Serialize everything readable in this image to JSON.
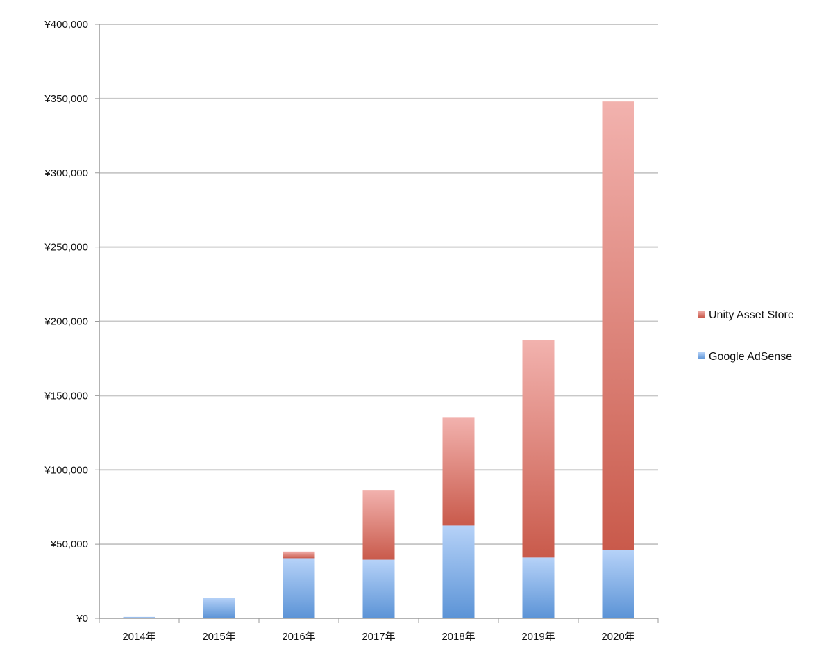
{
  "chart_data": {
    "type": "bar",
    "stacked": true,
    "categories": [
      "2014年",
      "2015年",
      "2016年",
      "2017年",
      "2018年",
      "2019年",
      "2020年"
    ],
    "series": [
      {
        "name": "Google AdSense",
        "values": [
          1000,
          14000,
          40500,
          39500,
          62500,
          41000,
          46000
        ],
        "color_dark": "#5b93d6",
        "color_light": "#b6d2f8"
      },
      {
        "name": "Unity Asset Store",
        "values": [
          0,
          0,
          4500,
          47000,
          73000,
          146500,
          302000
        ],
        "color_dark": "#c95a4b",
        "color_light": "#f2b2ae"
      }
    ],
    "yticks": [
      "¥0",
      "¥50,000",
      "¥100,000",
      "¥150,000",
      "¥200,000",
      "¥250,000",
      "¥300,000",
      "¥350,000",
      "¥400,000"
    ],
    "ylim": [
      0,
      400000
    ],
    "grid": true,
    "legend_position": "right",
    "title": "",
    "xlabel": "",
    "ylabel": ""
  }
}
